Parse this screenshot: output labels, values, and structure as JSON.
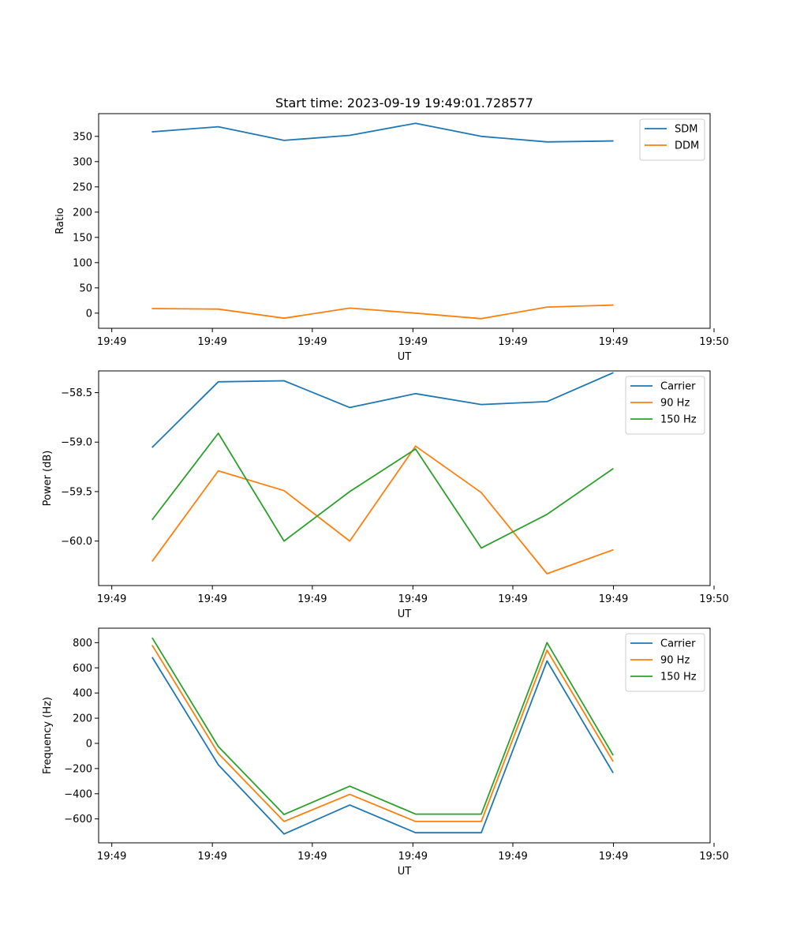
{
  "figure": {
    "title": "Start time: 2023-09-19 19:49:01.728577"
  },
  "chart_data": [
    {
      "type": "line",
      "title": "Start time: 2023-09-19 19:49:01.728577",
      "xlabel": "UT",
      "ylabel": "Ratio",
      "x": [
        0.62,
        1.62,
        2.62,
        3.62,
        4.62,
        5.62,
        6.62,
        7.62
      ],
      "xlim": [
        -0.2,
        9.1
      ],
      "xticks": [
        0,
        1.53,
        3.05,
        4.58,
        6.1,
        7.63,
        9.16
      ],
      "xtick_labels": [
        "19:49",
        "19:49",
        "19:49",
        "19:49",
        "19:49",
        "19:49",
        "19:50"
      ],
      "ylim": [
        -30,
        395
      ],
      "yticks": [
        0,
        50,
        100,
        150,
        200,
        250,
        300,
        350
      ],
      "ytick_labels": [
        "0",
        "50",
        "100",
        "150",
        "200",
        "250",
        "300",
        "350"
      ],
      "legend_position": "top-right",
      "grid": false,
      "series": [
        {
          "name": "SDM",
          "color": "#1f77b4",
          "values": [
            359,
            369,
            342,
            352,
            376,
            350,
            339,
            341
          ]
        },
        {
          "name": "DDM",
          "color": "#ff7f0e",
          "values": [
            9,
            8,
            -10,
            10,
            0,
            -11,
            12,
            16
          ]
        }
      ]
    },
    {
      "type": "line",
      "title": "",
      "xlabel": "UT",
      "ylabel": "Power (dB)",
      "x": [
        0.62,
        1.62,
        2.62,
        3.62,
        4.62,
        5.62,
        6.62,
        7.62
      ],
      "xlim": [
        -0.2,
        9.1
      ],
      "xticks": [
        0,
        1.53,
        3.05,
        4.58,
        6.1,
        7.63,
        9.16
      ],
      "xtick_labels": [
        "19:49",
        "19:49",
        "19:49",
        "19:49",
        "19:49",
        "19:49",
        "19:50"
      ],
      "ylim": [
        -60.45,
        -58.28
      ],
      "yticks": [
        -60.0,
        -59.5,
        -59.0,
        -58.5
      ],
      "ytick_labels": [
        "−60.0",
        "−59.5",
        "−59.0",
        "−58.5"
      ],
      "legend_position": "top-right",
      "grid": false,
      "series": [
        {
          "name": "Carrier",
          "color": "#1f77b4",
          "values": [
            -59.05,
            -58.39,
            -58.38,
            -58.65,
            -58.51,
            -58.62,
            -58.59,
            -58.3
          ]
        },
        {
          "name": "90 Hz",
          "color": "#ff7f0e",
          "values": [
            -60.2,
            -59.29,
            -59.49,
            -60.0,
            -59.04,
            -59.51,
            -60.33,
            -60.09
          ]
        },
        {
          "name": "150 Hz",
          "color": "#2ca02c",
          "values": [
            -59.78,
            -58.91,
            -60.0,
            -59.5,
            -59.07,
            -60.07,
            -59.73,
            -59.27
          ]
        }
      ]
    },
    {
      "type": "line",
      "title": "",
      "xlabel": "UT",
      "ylabel": "Frequency (Hz)",
      "x": [
        0.62,
        1.62,
        2.62,
        3.62,
        4.62,
        5.62,
        6.62,
        7.62
      ],
      "xlim": [
        -0.2,
        9.1
      ],
      "xticks": [
        0,
        1.53,
        3.05,
        4.58,
        6.1,
        7.63,
        9.16
      ],
      "xtick_labels": [
        "19:49",
        "19:49",
        "19:49",
        "19:49",
        "19:49",
        "19:49",
        "19:50"
      ],
      "ylim": [
        -790,
        915
      ],
      "yticks": [
        -600,
        -400,
        -200,
        0,
        200,
        400,
        600,
        800
      ],
      "ytick_labels": [
        "−600",
        "−400",
        "−200",
        "0",
        "200",
        "400",
        "600",
        "800"
      ],
      "legend_position": "top-right",
      "grid": false,
      "series": [
        {
          "name": "Carrier",
          "color": "#1f77b4",
          "values": [
            680,
            -170,
            -720,
            -490,
            -710,
            -710,
            655,
            -230
          ]
        },
        {
          "name": "90 Hz",
          "color": "#ff7f0e",
          "values": [
            775,
            -80,
            -620,
            -405,
            -620,
            -620,
            740,
            -140
          ]
        },
        {
          "name": "150 Hz",
          "color": "#2ca02c",
          "values": [
            835,
            -25,
            -565,
            -340,
            -562,
            -562,
            800,
            -90
          ]
        }
      ]
    }
  ]
}
